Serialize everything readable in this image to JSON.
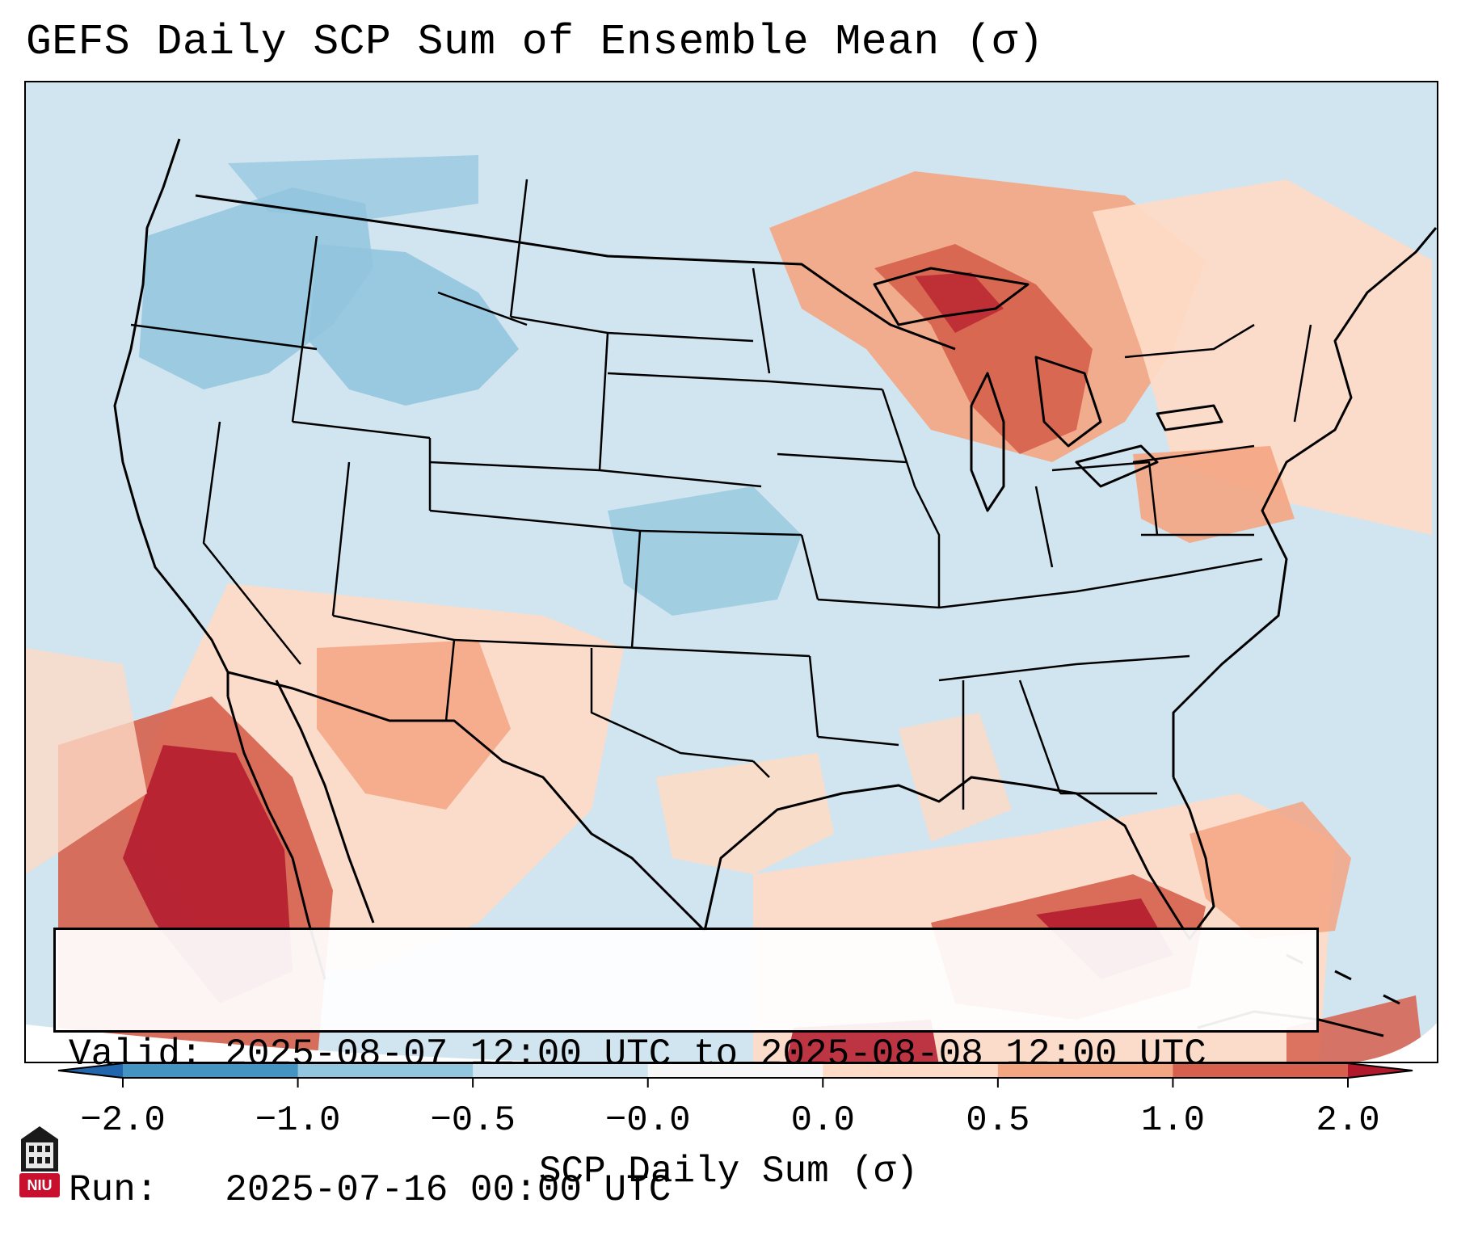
{
  "title": "GEFS Daily SCP Sum of Ensemble Mean (σ)",
  "info": {
    "valid_label": "Valid:",
    "valid_value": "2025-08-07 12:00 UTC to 2025-08-08 12:00 UTC",
    "run_label": "Run:",
    "run_value": "2025-07-16 00:00 UTC"
  },
  "colorbar": {
    "label": "SCP Daily Sum (σ)",
    "ticks": [
      "−2.0",
      "−1.0",
      "−0.5",
      "−0.0",
      "0.0",
      "0.5",
      "1.0",
      "2.0"
    ],
    "colors": [
      "#2166ac",
      "#4393c3",
      "#92c5de",
      "#d1e5f0",
      "#f7f7f7",
      "#fddbc7",
      "#f4a582",
      "#d6604d",
      "#b2182b"
    ]
  },
  "logo": {
    "text": "NIU",
    "icon": "niu-building-icon",
    "color": "#c8102e"
  },
  "map": {
    "ocean_color": "#d1e5f0",
    "regions": [
      {
        "name": "northwest-neg-1",
        "value": -1.0
      },
      {
        "name": "idaho-montana-neg",
        "value": -1.0
      },
      {
        "name": "nebraska-kansas-neg",
        "value": -0.5
      },
      {
        "name": "great-lakes-pos",
        "value": 1.0
      },
      {
        "name": "lake-superior-pos",
        "value": 2.0
      },
      {
        "name": "baja-pos",
        "value": 2.0
      },
      {
        "name": "gulf-florida-pos",
        "value": 1.0
      },
      {
        "name": "southwest-pos",
        "value": 0.5
      },
      {
        "name": "northeast-pos",
        "value": 0.5
      },
      {
        "name": "atlantic-pos",
        "value": 0.5
      }
    ]
  }
}
